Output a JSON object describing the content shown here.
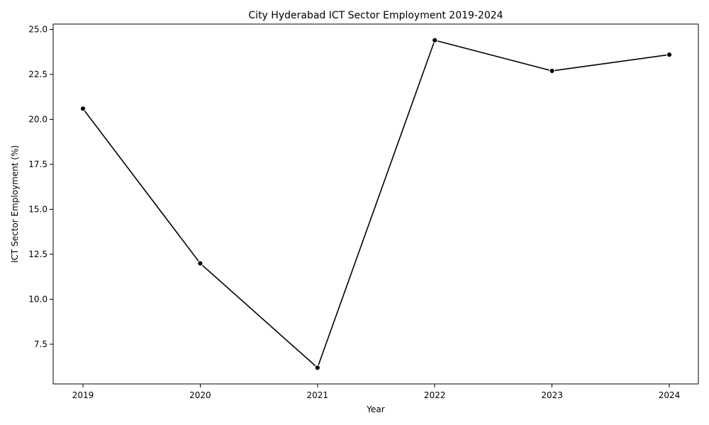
{
  "chart_data": {
    "type": "line",
    "title": "City Hyderabad ICT Sector Employment 2019-2024",
    "xlabel": "Year",
    "ylabel": "ICT Sector Employment (%)",
    "x": [
      "2019",
      "2020",
      "2021",
      "2022",
      "2023",
      "2024"
    ],
    "series": [
      {
        "values": [
          20.6,
          12.0,
          6.2,
          24.4,
          22.7,
          23.6
        ]
      }
    ],
    "ylim": [
      5.3,
      25.3
    ],
    "yticks": [
      "7.5",
      "10.0",
      "12.5",
      "15.0",
      "17.5",
      "20.0",
      "22.5",
      "25.0"
    ],
    "grid": false,
    "legend": "none",
    "colors": {
      "line": "#000000",
      "marker": "#000000",
      "background": "#ffffff"
    }
  }
}
